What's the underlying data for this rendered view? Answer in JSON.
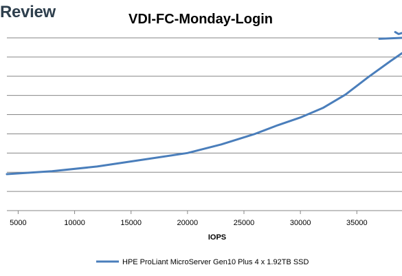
{
  "brand": {
    "text": "Review"
  },
  "chart_data": {
    "type": "line",
    "title": "VDI-FC-Monday-Login",
    "xlabel": "IOPS",
    "ylabel": "",
    "xlim": [
      4000,
      39000
    ],
    "ylim": [
      0,
      9
    ],
    "x_ticks": [
      5000,
      10000,
      15000,
      20000,
      25000,
      30000,
      35000
    ],
    "grid": true,
    "legend": "bottom",
    "series": [
      {
        "name": "HPE ProLiant MicroServer Gen10 Plus 4 x 1.92TB SSD",
        "color": "#4a7ebb",
        "points": [
          [
            4000,
            1.9
          ],
          [
            8000,
            2.05
          ],
          [
            12000,
            2.3
          ],
          [
            16000,
            2.65
          ],
          [
            20000,
            3.0
          ],
          [
            23000,
            3.45
          ],
          [
            26000,
            4.0
          ],
          [
            28000,
            4.45
          ],
          [
            30000,
            4.85
          ],
          [
            32000,
            5.35
          ],
          [
            34000,
            6.05
          ],
          [
            36000,
            6.95
          ],
          [
            38000,
            7.8
          ],
          [
            39000,
            8.2
          ]
        ]
      },
      {
        "name": "",
        "color": "#4a7ebb",
        "points": [
          [
            37000,
            8.95
          ],
          [
            39000,
            9.0
          ]
        ]
      },
      {
        "name": "",
        "color": "#4a7ebb",
        "points": [
          [
            38400,
            9.3
          ],
          [
            38700,
            9.2
          ],
          [
            39000,
            9.25
          ]
        ]
      }
    ]
  }
}
